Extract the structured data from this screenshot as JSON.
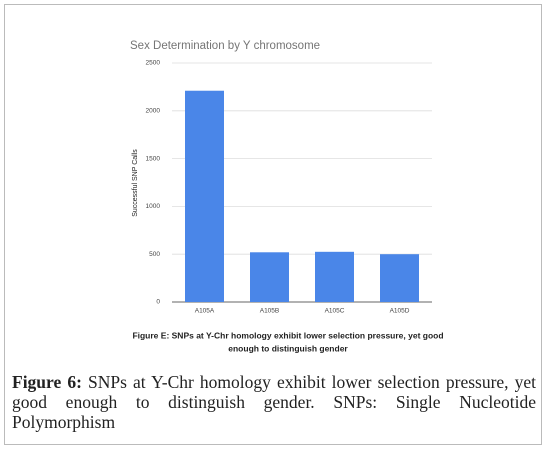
{
  "chart_data": {
    "type": "bar",
    "title": "Sex Determination by Y chromosome",
    "y_label": "Successful SNP Calls",
    "categories": [
      "A105A",
      "A105B",
      "A105C",
      "A105D"
    ],
    "values": [
      2210,
      520,
      525,
      500
    ],
    "color": "#4a86e8",
    "ylim": [
      0,
      2500
    ],
    "yticks": [
      0,
      500,
      1000,
      1500,
      2000,
      2500
    ],
    "grid": true
  },
  "figure_e_caption": [
    "Figure E: SNPs at Y-Chr homology exhibit lower selection pressure, yet good",
    "enough to distinguish gender"
  ],
  "figure_caption": {
    "label": "Figure 6:",
    "text": "SNPs at Y-Chr homology exhibit lower selection pressure, yet good enough to distinguish gender. SNPs: Single Nucleotide Polymorphism"
  }
}
